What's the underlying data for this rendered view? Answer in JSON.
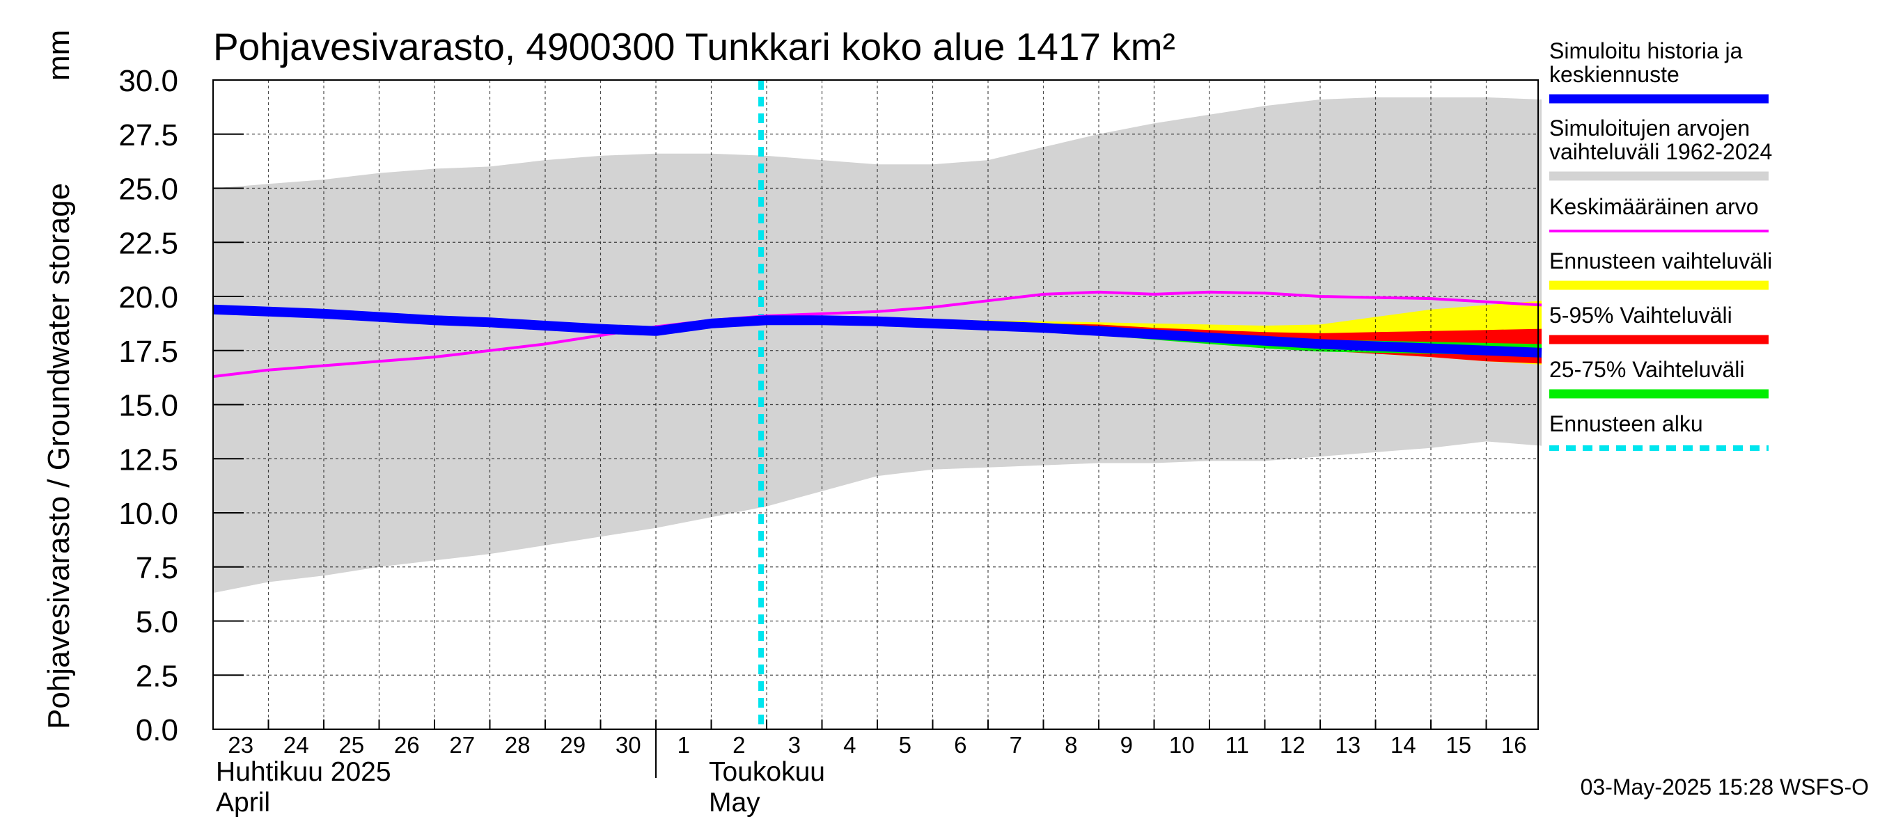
{
  "chart_data": {
    "type": "area",
    "title": "Pohjavesivarasto, 4900300 Tunkkari koko alue 1417 km²",
    "ylabel": "Pohjavesivarasto / Groundwater storage",
    "yunit": "mm",
    "ylim": [
      0.0,
      30.0
    ],
    "yticks": [
      "0.0",
      "2.5",
      "5.0",
      "7.5",
      "10.0",
      "12.5",
      "15.0",
      "17.5",
      "20.0",
      "22.5",
      "25.0",
      "27.5",
      "30.0"
    ],
    "x_dates": [
      "2025-04-23",
      "2025-04-24",
      "2025-04-25",
      "2025-04-26",
      "2025-04-27",
      "2025-04-28",
      "2025-04-29",
      "2025-04-30",
      "2025-05-01",
      "2025-05-02",
      "2025-05-03",
      "2025-05-04",
      "2025-05-05",
      "2025-05-06",
      "2025-05-07",
      "2025-05-08",
      "2025-05-09",
      "2025-05-10",
      "2025-05-11",
      "2025-05-12",
      "2025-05-13",
      "2025-05-14",
      "2025-05-15",
      "2025-05-16",
      "2025-05-17"
    ],
    "x_ticklabels": [
      "23",
      "24",
      "25",
      "26",
      "27",
      "28",
      "29",
      "30",
      "1",
      "2",
      "3",
      "4",
      "5",
      "6",
      "7",
      "8",
      "9",
      "10",
      "11",
      "12",
      "13",
      "14",
      "15",
      "16"
    ],
    "month_labels": [
      {
        "line1": "Huhtikuu  2025",
        "line2": "April"
      },
      {
        "line1": "Toukokuu",
        "line2": "May"
      }
    ],
    "forecast_start": "2025-05-03",
    "forecast_start_index": 9.9,
    "grid": true,
    "legend_position": "right",
    "series": [
      {
        "name": "Simuloitujen arvojen vaihteluväli 1962-2024",
        "kind": "band",
        "color": "#d3d3d3",
        "lower": [
          6.3,
          6.8,
          7.1,
          7.5,
          7.8,
          8.1,
          8.5,
          8.9,
          9.3,
          9.8,
          10.3,
          11.0,
          11.7,
          12.0,
          12.1,
          12.2,
          12.3,
          12.3,
          12.4,
          12.4,
          12.6,
          12.8,
          13.0,
          13.3,
          13.1
        ],
        "upper": [
          25.0,
          25.2,
          25.4,
          25.7,
          25.9,
          26.0,
          26.3,
          26.5,
          26.6,
          26.6,
          26.5,
          26.3,
          26.1,
          26.1,
          26.3,
          26.9,
          27.5,
          28.0,
          28.4,
          28.8,
          29.1,
          29.2,
          29.2,
          29.2,
          29.1
        ]
      },
      {
        "name": "Ennusteen vaihteluväli",
        "kind": "band",
        "color": "#ffff00",
        "lower": [
          null,
          null,
          null,
          null,
          null,
          null,
          null,
          null,
          null,
          null,
          18.9,
          18.85,
          18.8,
          18.75,
          18.6,
          18.5,
          18.3,
          18.1,
          17.9,
          17.7,
          17.5,
          17.35,
          17.2,
          17.0,
          16.85
        ],
        "upper": [
          null,
          null,
          null,
          null,
          null,
          null,
          null,
          null,
          null,
          null,
          18.9,
          18.95,
          18.9,
          18.9,
          18.9,
          18.85,
          18.8,
          18.75,
          18.7,
          18.65,
          18.7,
          19.05,
          19.4,
          19.6,
          19.8
        ]
      },
      {
        "name": "5-95% Vaihteluväli",
        "kind": "band",
        "color": "#ff0000",
        "lower": [
          null,
          null,
          null,
          null,
          null,
          null,
          null,
          null,
          null,
          null,
          18.9,
          18.85,
          18.8,
          18.75,
          18.6,
          18.5,
          18.3,
          18.1,
          17.9,
          17.7,
          17.5,
          17.35,
          17.2,
          17.0,
          16.9
        ],
        "upper": [
          null,
          null,
          null,
          null,
          null,
          null,
          null,
          null,
          null,
          null,
          18.9,
          18.95,
          18.9,
          18.85,
          18.8,
          18.75,
          18.7,
          18.55,
          18.45,
          18.35,
          18.3,
          18.35,
          18.4,
          18.45,
          18.5
        ]
      },
      {
        "name": "25-75% Vaihteluväli",
        "kind": "band",
        "color": "#00ee00",
        "lower": [
          null,
          null,
          null,
          null,
          null,
          null,
          null,
          null,
          null,
          null,
          18.9,
          18.85,
          18.8,
          18.7,
          18.55,
          18.4,
          18.2,
          18.0,
          17.8,
          17.6,
          17.45,
          17.4,
          17.35,
          17.3,
          17.2
        ],
        "upper": [
          null,
          null,
          null,
          null,
          null,
          null,
          null,
          null,
          null,
          null,
          18.9,
          18.9,
          18.85,
          18.8,
          18.7,
          18.6,
          18.45,
          18.3,
          18.2,
          18.1,
          18.0,
          17.95,
          17.9,
          17.85,
          17.8
        ]
      },
      {
        "name": "Keskimääräinen arvo",
        "kind": "line",
        "color": "#ff00ff",
        "values": [
          16.3,
          16.6,
          16.8,
          17.0,
          17.2,
          17.5,
          17.8,
          18.2,
          18.6,
          18.9,
          19.1,
          19.2,
          19.3,
          19.5,
          19.8,
          20.1,
          20.2,
          20.1,
          20.2,
          20.15,
          20.0,
          19.95,
          19.9,
          19.75,
          19.6
        ]
      },
      {
        "name": "Simuloitu historia ja keskiennuste",
        "kind": "line",
        "color": "#0000ff",
        "values": [
          19.4,
          19.3,
          19.2,
          19.05,
          18.9,
          18.8,
          18.65,
          18.5,
          18.4,
          18.75,
          18.9,
          18.9,
          18.85,
          18.75,
          18.65,
          18.55,
          18.4,
          18.25,
          18.1,
          17.95,
          17.8,
          17.7,
          17.6,
          17.5,
          17.4
        ]
      }
    ]
  },
  "legend": [
    {
      "lines": [
        "Simuloitu historia ja",
        "keskiennuste"
      ],
      "color": "#0000ff",
      "style": "solid"
    },
    {
      "lines": [
        "Simuloitujen arvojen",
        "vaihteluväli 1962-2024"
      ],
      "color": "#d3d3d3",
      "style": "solid"
    },
    {
      "lines": [
        "Keskimääräinen arvo"
      ],
      "color": "#ff00ff",
      "style": "thin"
    },
    {
      "lines": [
        "Ennusteen vaihteluväli"
      ],
      "color": "#ffff00",
      "style": "solid"
    },
    {
      "lines": [
        "5-95% Vaihteluväli"
      ],
      "color": "#ff0000",
      "style": "solid"
    },
    {
      "lines": [
        "25-75% Vaihteluväli"
      ],
      "color": "#00ee00",
      "style": "solid"
    },
    {
      "lines": [
        "Ennusteen alku"
      ],
      "color": "#00e5ee",
      "style": "dashed"
    }
  ],
  "footer": "03-May-2025 15:28 WSFS-O"
}
